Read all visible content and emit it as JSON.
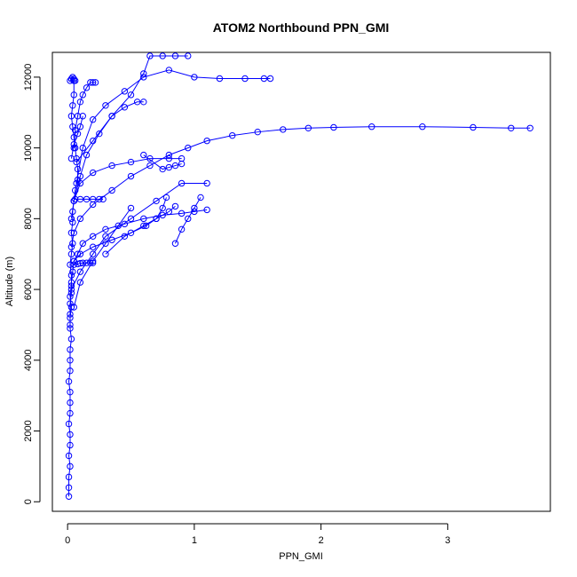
{
  "chart_data": {
    "type": "scatter",
    "title": "ATOM2 Northbound PPN_GMI",
    "xlabel": "PPN_GMI",
    "ylabel": "Altitude (m)",
    "xlim": [
      -0.12,
      3.81
    ],
    "ylim": [
      -270,
      12700
    ],
    "xticks": [
      0,
      1,
      2,
      3
    ],
    "yticks": [
      0,
      2000,
      4000,
      6000,
      8000,
      10000,
      12000
    ],
    "marker": "open-circle",
    "connected": true,
    "color": "#0000ff",
    "series": [
      {
        "x": [
          0.01,
          0.01,
          0.01,
          0.02,
          0.01,
          0.02,
          0.02,
          0.01,
          0.02,
          0.02,
          0.02,
          0.01,
          0.02,
          0.02,
          0.02,
          0.03,
          0.02,
          0.02,
          0.03,
          0.02,
          0.03,
          0.03,
          0.02,
          0.03,
          0.04,
          0.03,
          0.04,
          0.04,
          0.05,
          0.06,
          0.08,
          0.08,
          0.07,
          0.06,
          0.05,
          0.04,
          0.03,
          0.04,
          0.05,
          0.05
        ],
        "y": [
          150,
          400,
          700,
          1000,
          1300,
          1600,
          1900,
          2200,
          2500,
          2800,
          3100,
          3400,
          3700,
          4000,
          4300,
          4600,
          4900,
          5200,
          5500,
          5800,
          6100,
          6400,
          6700,
          7000,
          7300,
          7600,
          7900,
          8200,
          8500,
          8800,
          9100,
          9400,
          9700,
          10000,
          10300,
          10600,
          10900,
          11200,
          11500,
          11900
        ]
      },
      {
        "x": [
          0.02,
          0.02,
          0.02,
          0.03,
          0.03,
          0.04,
          0.05,
          0.08,
          0.12,
          0.2,
          0.3,
          0.45,
          0.6,
          0.75,
          0.9,
          1.0,
          1.1
        ],
        "y": [
          5000,
          5300,
          5600,
          5900,
          6200,
          6500,
          6800,
          7000,
          7300,
          7500,
          7700,
          7850,
          8000,
          8100,
          8150,
          8200,
          8250
        ]
      },
      {
        "x": [
          0.05,
          0.1,
          0.2,
          0.35,
          0.5,
          0.62,
          0.7,
          0.75,
          0.78
        ],
        "y": [
          6800,
          7000,
          7200,
          7400,
          7600,
          7800,
          8000,
          8300,
          8600
        ]
      },
      {
        "x": [
          0.03,
          0.05,
          0.1,
          0.2,
          0.35,
          0.5,
          0.65,
          0.8,
          0.95,
          1.1,
          1.3,
          1.5,
          1.7,
          1.9,
          2.1,
          2.4,
          2.8,
          3.2,
          3.5,
          3.65
        ],
        "y": [
          7200,
          7600,
          8000,
          8400,
          8800,
          9200,
          9500,
          9800,
          10000,
          10200,
          10350,
          10450,
          10520,
          10560,
          10580,
          10600,
          10600,
          10580,
          10560,
          10560
        ]
      },
      {
        "x": [
          0.03,
          0.07,
          0.12,
          0.2,
          0.3,
          0.45,
          0.6,
          0.8,
          1.0,
          1.2,
          1.4,
          1.55,
          1.6
        ],
        "y": [
          8000,
          9000,
          10000,
          10800,
          11200,
          11600,
          12000,
          12200,
          12000,
          11960,
          11960,
          11960,
          11960
        ]
      },
      {
        "x": [
          0.05,
          0.1,
          0.2,
          0.35,
          0.5,
          0.65,
          0.8,
          0.9
        ],
        "y": [
          8500,
          9000,
          9300,
          9500,
          9600,
          9700,
          9700,
          9700
        ]
      },
      {
        "x": [
          0.05,
          0.1,
          0.15,
          0.25,
          0.35,
          0.45,
          0.55,
          0.6
        ],
        "y": [
          8500,
          9200,
          9800,
          10400,
          10900,
          11150,
          11300,
          11300
        ]
      },
      {
        "x": [
          0.07,
          0.2,
          0.35,
          0.5,
          0.6,
          0.65,
          0.75,
          0.85,
          0.95
        ],
        "y": [
          9600,
          10200,
          10900,
          11500,
          12100,
          12600,
          12600,
          12600,
          12600
        ]
      },
      {
        "x": [
          0.03,
          0.1,
          0.2,
          0.3,
          0.5,
          0.7,
          0.9,
          1.1
        ],
        "y": [
          6000,
          6500,
          7000,
          7500,
          8000,
          8500,
          9000,
          9000
        ]
      },
      {
        "x": [
          0.05,
          0.1,
          0.2,
          0.3,
          0.4,
          0.5
        ],
        "y": [
          5500,
          6200,
          6800,
          7300,
          7800,
          8300
        ]
      },
      {
        "x": [
          0.05,
          0.08,
          0.1,
          0.12,
          0.15,
          0.18,
          0.2
        ],
        "y": [
          6700,
          6720,
          6740,
          6750,
          6750,
          6750,
          6750
        ]
      },
      {
        "x": [
          0.06,
          0.1,
          0.15,
          0.2,
          0.25,
          0.28
        ],
        "y": [
          8550,
          8550,
          8550,
          8550,
          8550,
          8550
        ]
      },
      {
        "x": [
          0.05,
          0.06,
          0.08,
          0.1,
          0.12,
          0.15,
          0.18,
          0.2,
          0.22
        ],
        "y": [
          10000,
          10500,
          10900,
          11300,
          11500,
          11700,
          11850,
          11850,
          11850
        ]
      },
      {
        "x": [
          0.03,
          0.05,
          0.08,
          0.1,
          0.12
        ],
        "y": [
          9700,
          10100,
          10400,
          10600,
          10900
        ]
      },
      {
        "x": [
          0.02,
          0.03,
          0.04,
          0.05,
          0.06
        ],
        "y": [
          11900,
          11950,
          12000,
          11950,
          11900
        ]
      },
      {
        "x": [
          0.6,
          0.75,
          0.8,
          0.85,
          0.9
        ],
        "y": [
          9800,
          9400,
          9450,
          9500,
          9550
        ]
      },
      {
        "x": [
          0.3,
          0.45,
          0.6,
          0.7,
          0.8,
          0.85
        ],
        "y": [
          7000,
          7500,
          7800,
          8000,
          8200,
          8350
        ]
      },
      {
        "x": [
          0.85,
          0.9,
          0.95,
          1.0,
          1.05
        ],
        "y": [
          7300,
          7700,
          8000,
          8300,
          8600
        ]
      }
    ]
  }
}
